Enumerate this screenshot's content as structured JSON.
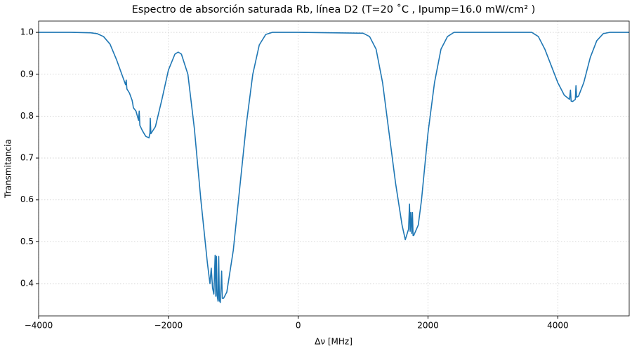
{
  "chart_data": {
    "type": "line",
    "title": "Espectro de absorción saturada Rb, línea D2 (T=20 ˚C , Ipump=16.0 mW/cm² )",
    "x_label": "Δν [MHz]",
    "y_label": "Transmitancia",
    "x": [
      -4000,
      -3500,
      -3200,
      -3100,
      -3000,
      -2900,
      -2800,
      -2700,
      -2660,
      -2650,
      -2640,
      -2600,
      -2560,
      -2550,
      -2540,
      -2500,
      -2460,
      -2450,
      -2440,
      -2400,
      -2350,
      -2300,
      -2285,
      -2280,
      -2270,
      -2200,
      -2100,
      -2000,
      -1900,
      -1850,
      -1800,
      -1700,
      -1600,
      -1500,
      -1400,
      -1360,
      -1340,
      -1320,
      -1300,
      -1280,
      -1270,
      -1260,
      -1250,
      -1235,
      -1225,
      -1215,
      -1200,
      -1180,
      -1170,
      -1160,
      -1150,
      -1100,
      -1000,
      -900,
      -800,
      -700,
      -600,
      -500,
      -400,
      0,
      1000,
      1100,
      1200,
      1300,
      1400,
      1500,
      1600,
      1650,
      1700,
      1715,
      1725,
      1735,
      1750,
      1760,
      1770,
      1780,
      1850,
      1900,
      2000,
      2100,
      2200,
      2300,
      2400,
      3600,
      3700,
      3800,
      3900,
      4000,
      4100,
      4180,
      4195,
      4205,
      4230,
      4270,
      4280,
      4290,
      4320,
      4400,
      4500,
      4600,
      4700,
      4800,
      5100
    ],
    "values": [
      1.0,
      1.0,
      0.999,
      0.997,
      0.99,
      0.972,
      0.935,
      0.892,
      0.875,
      0.886,
      0.865,
      0.855,
      0.838,
      0.83,
      0.82,
      0.812,
      0.79,
      0.812,
      0.778,
      0.765,
      0.752,
      0.748,
      0.76,
      0.795,
      0.758,
      0.775,
      0.84,
      0.91,
      0.948,
      0.953,
      0.948,
      0.9,
      0.77,
      0.6,
      0.45,
      0.4,
      0.437,
      0.39,
      0.375,
      0.468,
      0.37,
      0.465,
      0.372,
      0.358,
      0.465,
      0.36,
      0.355,
      0.43,
      0.365,
      0.365,
      0.365,
      0.38,
      0.48,
      0.63,
      0.78,
      0.9,
      0.97,
      0.995,
      1.0,
      1.0,
      0.998,
      0.99,
      0.96,
      0.88,
      0.76,
      0.64,
      0.54,
      0.505,
      0.53,
      0.59,
      0.525,
      0.57,
      0.52,
      0.57,
      0.515,
      0.515,
      0.54,
      0.6,
      0.76,
      0.88,
      0.96,
      0.99,
      1.0,
      1.0,
      0.99,
      0.96,
      0.92,
      0.88,
      0.85,
      0.84,
      0.862,
      0.836,
      0.835,
      0.84,
      0.873,
      0.845,
      0.848,
      0.88,
      0.94,
      0.98,
      0.997,
      1.0,
      1.0
    ],
    "color": "#1f77b4",
    "xlim": [
      -4000,
      5100
    ],
    "xticks": [
      {
        "value": -4000,
        "label": "−4000"
      },
      {
        "value": -2000,
        "label": "−2000"
      },
      0,
      2000,
      4000
    ],
    "ylim": [
      0.323,
      1.027
    ],
    "yticks": [
      0.4,
      0.5,
      0.6,
      0.7,
      0.8,
      0.9,
      {
        "value": 1,
        "label": "1.0"
      }
    ],
    "grid": true
  }
}
